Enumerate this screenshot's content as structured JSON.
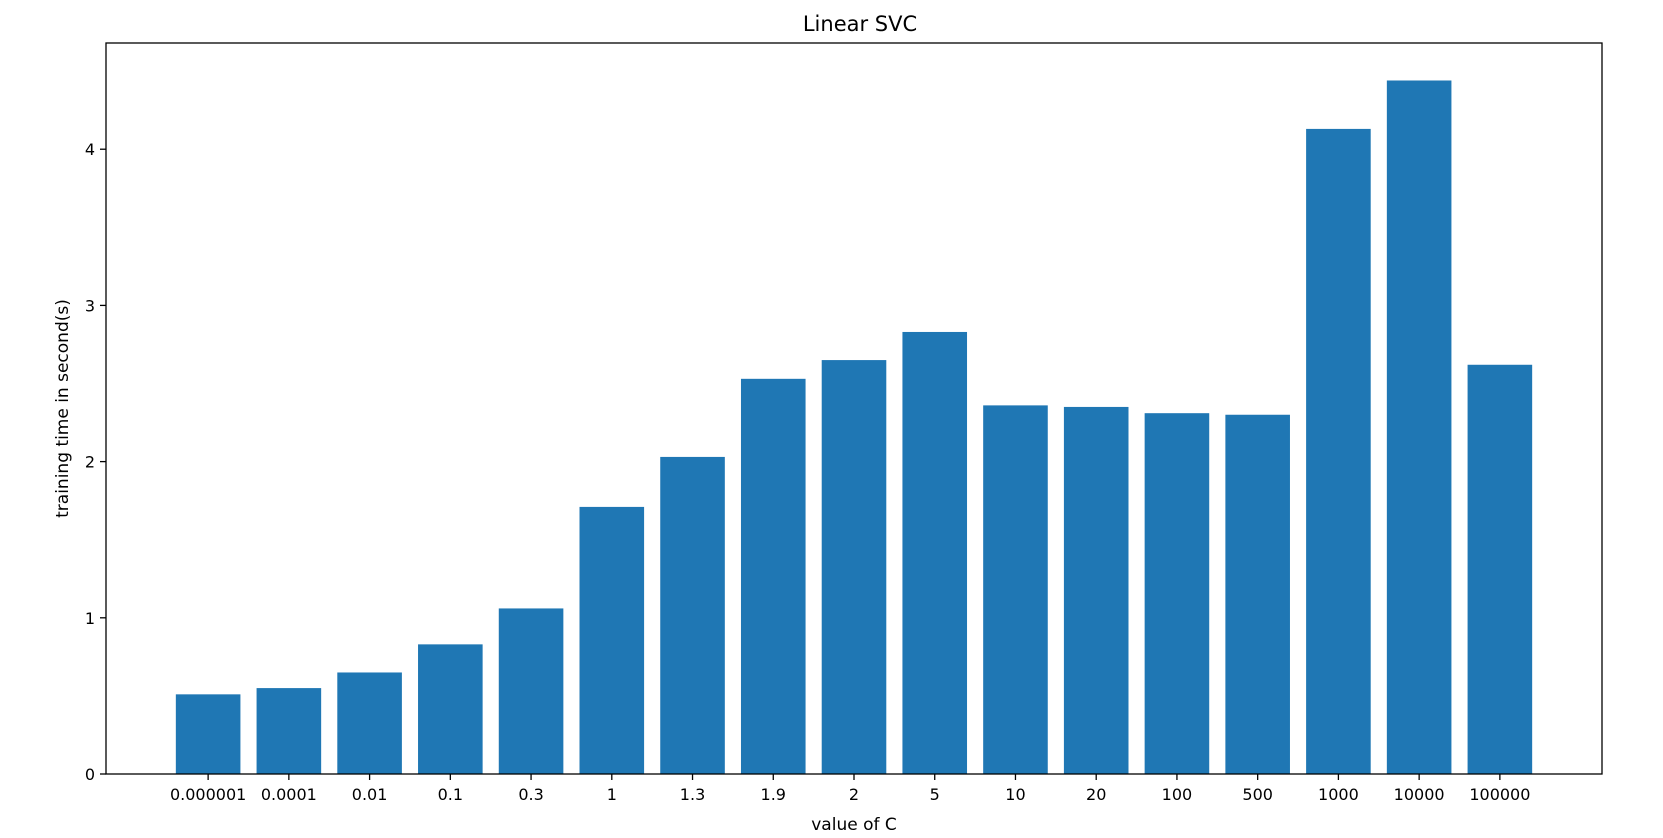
{
  "chart_data": {
    "type": "bar",
    "title": "Linear SVC",
    "xlabel": "value of C",
    "ylabel": "training time in second(s)",
    "categories": [
      "0.000001",
      "0.0001",
      "0.01",
      "0.1",
      "0.3",
      "1",
      "1.3",
      "1.9",
      "2",
      "5",
      "10",
      "20",
      "100",
      "500",
      "1000",
      "10000",
      "100000"
    ],
    "values": [
      0.51,
      0.55,
      0.65,
      0.83,
      1.06,
      1.71,
      2.03,
      2.53,
      2.65,
      2.83,
      2.36,
      2.35,
      2.31,
      2.3,
      4.13,
      4.44,
      2.62
    ],
    "ylim": [
      0,
      4.68
    ],
    "yticks": [
      0,
      1,
      2,
      3,
      4
    ],
    "grid": false,
    "bar_color": "#1f77b4"
  }
}
